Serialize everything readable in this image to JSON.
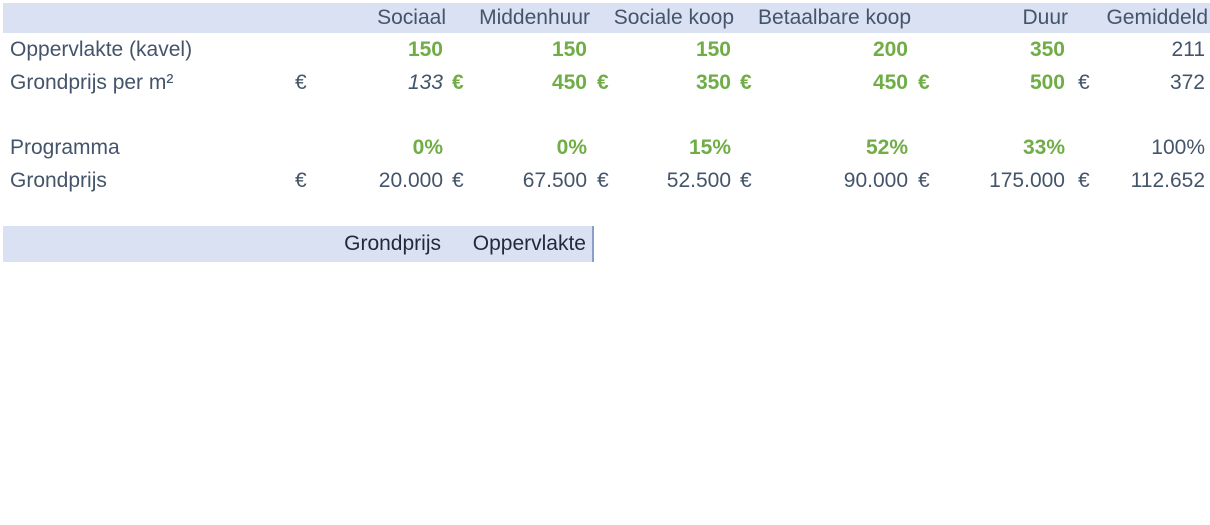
{
  "colors": {
    "band_background": "#D9E1F2",
    "band_border": "#8b9dc9",
    "header_text": "#44546A",
    "slate_text": "#44546A",
    "green_value": "#70AD47",
    "footer_band_text": "#1F2A3A",
    "page_background": "#FFFFFF"
  },
  "currency_symbol": "€",
  "header": {
    "c1": "Sociaal",
    "c2": "Middenhuur",
    "c3": "Sociale koop",
    "c4": "Betaalbare koop",
    "c5": "Duur",
    "c6": "Gemiddeld"
  },
  "oppervlakte": {
    "label": "Oppervlakte (kavel)",
    "c1": "150",
    "c2": "150",
    "c3": "150",
    "c4": "200",
    "c5": "350",
    "c6": "211"
  },
  "grondprijs_m2": {
    "label": "Grondprijs per m²",
    "euro": "€",
    "c1": "133",
    "c2": "450",
    "c3": "350",
    "c4": "450",
    "c5": "500",
    "c6": "372"
  },
  "programma": {
    "label": "Programma",
    "c1": "0%",
    "c2": "0%",
    "c3": "15%",
    "c4": "52%",
    "c5": "33%",
    "c6": "100%"
  },
  "grondprijs": {
    "label": "Grondprijs",
    "euro": "€",
    "c1": "20.000",
    "c2": "67.500",
    "c3": "52.500",
    "c4": "90.000",
    "c5": "175.000",
    "c6": "112.652"
  },
  "footer": {
    "col1": "Grondprijs",
    "col2": "Oppervlakte"
  }
}
